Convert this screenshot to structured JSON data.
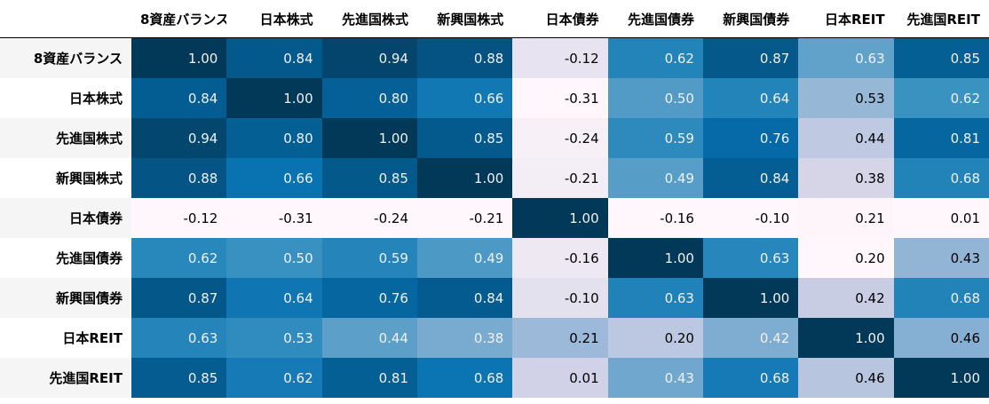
{
  "table": {
    "columns": [
      "8資産バランス",
      "日本株式",
      "先進国株式",
      "新興国株式",
      "日本債券",
      "先進国債券",
      "新興国債券",
      "日本REIT",
      "先進国REIT"
    ],
    "colormap": [
      "#fff7fb",
      "#ece7f2",
      "#d0d1e6",
      "#a6bddb",
      "#74a9cf",
      "#3690c0",
      "#0570b0",
      "#045a8d",
      "#023858"
    ],
    "rows": [
      {
        "label": "8資産バランス",
        "values": [
          "1.00",
          "0.84",
          "0.94",
          "0.88",
          "-0.12",
          "0.62",
          "0.87",
          "0.63",
          "0.85"
        ]
      },
      {
        "label": "日本株式",
        "values": [
          "0.84",
          "1.00",
          "0.80",
          "0.66",
          "-0.31",
          "0.50",
          "0.64",
          "0.53",
          "0.62"
        ]
      },
      {
        "label": "先進国株式",
        "values": [
          "0.94",
          "0.80",
          "1.00",
          "0.85",
          "-0.24",
          "0.59",
          "0.76",
          "0.44",
          "0.81"
        ]
      },
      {
        "label": "新興国株式",
        "values": [
          "0.88",
          "0.66",
          "0.85",
          "1.00",
          "-0.21",
          "0.49",
          "0.84",
          "0.38",
          "0.68"
        ]
      },
      {
        "label": "日本債券",
        "values": [
          "-0.12",
          "-0.31",
          "-0.24",
          "-0.21",
          "1.00",
          "-0.16",
          "-0.10",
          "0.21",
          "0.01"
        ]
      },
      {
        "label": "先進国債券",
        "values": [
          "0.62",
          "0.50",
          "0.59",
          "0.49",
          "-0.16",
          "1.00",
          "0.63",
          "0.20",
          "0.43"
        ]
      },
      {
        "label": "新興国債券",
        "values": [
          "0.87",
          "0.64",
          "0.76",
          "0.84",
          "-0.10",
          "0.63",
          "1.00",
          "0.42",
          "0.68"
        ]
      },
      {
        "label": "日本REIT",
        "values": [
          "0.63",
          "0.53",
          "0.44",
          "0.38",
          "0.21",
          "0.20",
          "0.42",
          "1.00",
          "0.46"
        ]
      },
      {
        "label": "先進国REIT",
        "values": [
          "0.85",
          "0.62",
          "0.81",
          "0.68",
          "0.01",
          "0.43",
          "0.68",
          "0.46",
          "1.00"
        ]
      }
    ]
  }
}
